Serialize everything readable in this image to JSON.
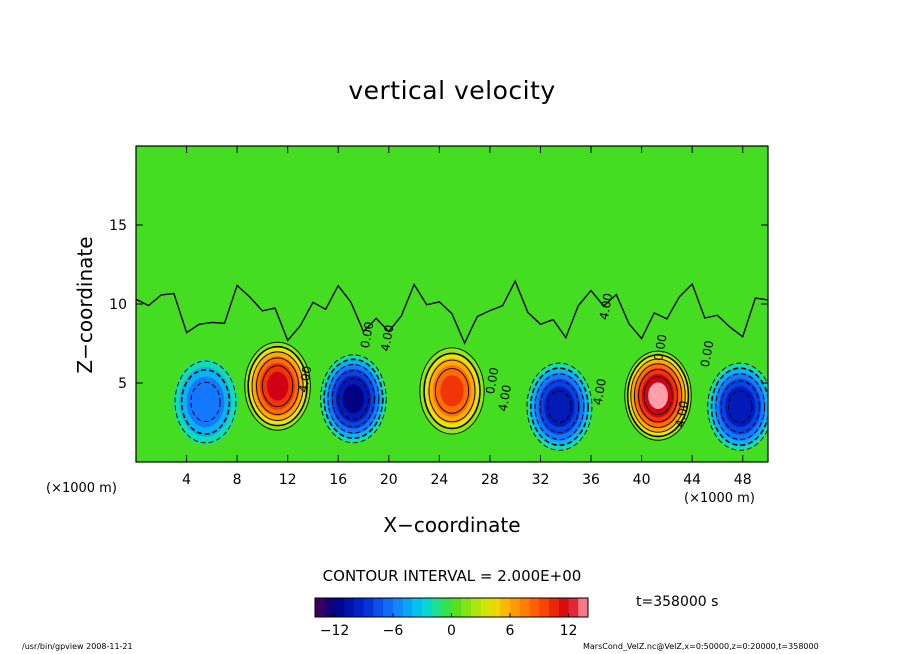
{
  "chart_data": {
    "type": "heatmap",
    "title": "vertical velocity",
    "xlabel": "X−coordinate",
    "ylabel": "Z−coordinate",
    "x_multiplier": "(×1000 m)",
    "y_multiplier": "(×1000 m)",
    "xlim": [
      0,
      50
    ],
    "ylim": [
      0,
      20
    ],
    "x_ticks": [
      4,
      8,
      12,
      16,
      20,
      24,
      28,
      32,
      36,
      40,
      44,
      48
    ],
    "y_ticks": [
      5,
      10,
      15
    ],
    "contour_interval_label": "CONTOUR INTERVAL = 2.000E+00",
    "contour_labels": [
      "4.00",
      "0.00",
      "4.00",
      "0.00",
      "4.00",
      "4.00",
      "0.00",
      "4.00",
      "0.00",
      "4.00"
    ],
    "colorbar": {
      "range": [
        -14,
        14
      ],
      "ticks": [
        -12,
        -6,
        0,
        6,
        12
      ],
      "tick_labels": [
        "−12",
        "−6",
        "0",
        "6",
        "12"
      ]
    },
    "cells": [
      {
        "x": 5.5,
        "z": 3.8,
        "value": -6
      },
      {
        "x": 11.2,
        "z": 4.8,
        "value": 11
      },
      {
        "x": 17.2,
        "z": 4.0,
        "value": -11
      },
      {
        "x": 25.0,
        "z": 4.5,
        "value": 9
      },
      {
        "x": 33.5,
        "z": 3.5,
        "value": -10
      },
      {
        "x": 41.3,
        "z": 4.2,
        "value": 13
      },
      {
        "x": 47.8,
        "z": 3.5,
        "value": -10
      }
    ],
    "time_label": "t=358000 s"
  },
  "footer": {
    "left": "/usr/bin/gpview   2008-11-21",
    "right": "MarsCond_VelZ.nc@VelZ,x=0:50000,z=0:20000,t=358000"
  }
}
